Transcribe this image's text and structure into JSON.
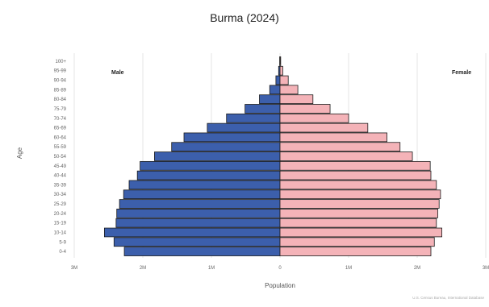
{
  "chart_data": {
    "type": "bar",
    "orientation": "horizontal",
    "title": "Burma (2024)",
    "xlabel": "Population",
    "ylabel": "Age",
    "xlim": [
      -3000000,
      3000000
    ],
    "x_ticks": [
      "3M",
      "2M",
      "1M",
      "0",
      "1M",
      "2M",
      "3M"
    ],
    "categories": [
      "0-4",
      "5-9",
      "10-14",
      "15-19",
      "20-24",
      "25-29",
      "30-34",
      "35-39",
      "40-44",
      "45-49",
      "50-54",
      "55-59",
      "60-64",
      "65-69",
      "70-74",
      "75-79",
      "80-84",
      "85-89",
      "90-94",
      "95-99",
      "100+"
    ],
    "series": [
      {
        "name": "Male",
        "color": "#3c5fac",
        "values": [
          2270000,
          2420000,
          2560000,
          2390000,
          2380000,
          2340000,
          2280000,
          2200000,
          2080000,
          2040000,
          1830000,
          1580000,
          1400000,
          1060000,
          780000,
          510000,
          300000,
          150000,
          60000,
          20000,
          5000
        ]
      },
      {
        "name": "Female",
        "color": "#f4b3b8",
        "values": [
          2200000,
          2250000,
          2360000,
          2280000,
          2300000,
          2320000,
          2340000,
          2280000,
          2200000,
          2190000,
          1930000,
          1750000,
          1560000,
          1280000,
          1000000,
          730000,
          480000,
          260000,
          120000,
          40000,
          10000
        ]
      }
    ],
    "grid": true,
    "legend": "in-plot"
  },
  "labels": {
    "male": "Male",
    "female": "Female"
  },
  "source": "U.S. Census Bureau, International Database"
}
